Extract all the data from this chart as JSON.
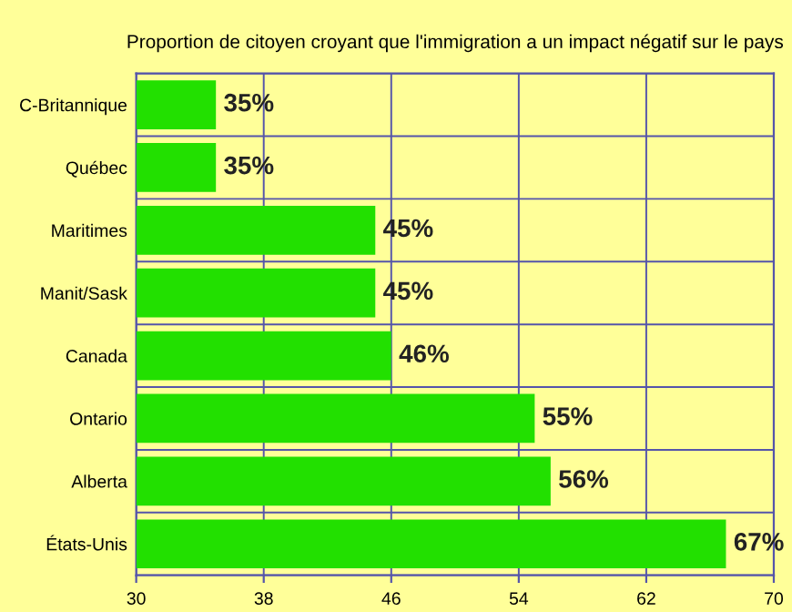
{
  "chart_data": {
    "type": "bar",
    "orientation": "horizontal",
    "title": "Proportion de citoyen croyant que l'immigration a un impact négatif sur le pays",
    "categories": [
      "C-Britannique",
      "Québec",
      "Maritimes",
      "Manit/Sask",
      "Canada",
      "Ontario",
      "Alberta",
      "États-Unis"
    ],
    "values": [
      35,
      35,
      45,
      45,
      46,
      55,
      56,
      67
    ],
    "value_labels": [
      "35%",
      "35%",
      "45%",
      "45%",
      "46%",
      "55%",
      "56%",
      "67%"
    ],
    "color": "#22e000",
    "xlim": [
      30,
      70
    ],
    "xticks": [
      30,
      38,
      46,
      54,
      62,
      70
    ],
    "grid": true
  }
}
